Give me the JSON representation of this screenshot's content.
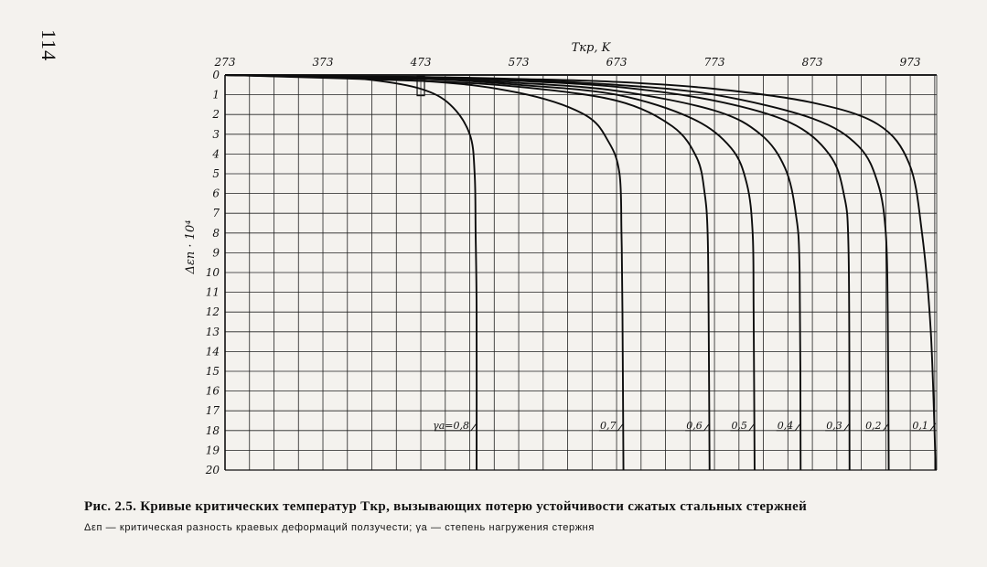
{
  "page_number": "114",
  "caption": {
    "line1": "Рис. 2.5. Кривые критических температур Tкр, вызывающих потерю устойчивости сжатых стальных стержней",
    "line2": "Δεп — критическая разность краевых деформаций ползучести; γa — степень нагружения стержня"
  },
  "chart_data": {
    "type": "line",
    "title": "",
    "xlabel": "Tкр, K",
    "ylabel": "Δεп · 10⁴",
    "xlim": [
      273,
      1000
    ],
    "ylim": [
      0,
      20
    ],
    "y_inverted": true,
    "x_axis_position": "top",
    "grid": true,
    "x_ticks": [
      "273",
      "373",
      "473",
      "573",
      "673",
      "773",
      "873",
      "973"
    ],
    "x_tick_values": [
      273,
      373,
      473,
      573,
      673,
      773,
      873,
      973
    ],
    "y_ticks": [
      "0",
      "1",
      "2",
      "3",
      "4",
      "5",
      "6",
      "7",
      "8",
      "9",
      "10",
      "11",
      "12",
      "13",
      "14",
      "15",
      "16",
      "17",
      "18",
      "19",
      "20"
    ],
    "series": [
      {
        "name": "γa=0,8",
        "points": [
          [
            273,
            0
          ],
          [
            373,
            0.1
          ],
          [
            423,
            0.25
          ],
          [
            473,
            0.7
          ],
          [
            503,
            1.5
          ],
          [
            523,
            3
          ],
          [
            528,
            5
          ],
          [
            529,
            8
          ],
          [
            530,
            12
          ],
          [
            530,
            20
          ]
        ]
      },
      {
        "name": "0,7",
        "points": [
          [
            273,
            0
          ],
          [
            473,
            0.3
          ],
          [
            573,
            0.9
          ],
          [
            640,
            2
          ],
          [
            665,
            3.4
          ],
          [
            676,
            5
          ],
          [
            678,
            8
          ],
          [
            679,
            12
          ],
          [
            680,
            20
          ]
        ]
      },
      {
        "name": "0,6",
        "points": [
          [
            273,
            0
          ],
          [
            473,
            0.3
          ],
          [
            573,
            0.6
          ],
          [
            673,
            1.3
          ],
          [
            730,
            2.6
          ],
          [
            755,
            4.2
          ],
          [
            763,
            6
          ],
          [
            766,
            8
          ],
          [
            767,
            12
          ],
          [
            768,
            20
          ]
        ]
      },
      {
        "name": "0,5",
        "points": [
          [
            273,
            0
          ],
          [
            473,
            0.2
          ],
          [
            573,
            0.5
          ],
          [
            673,
            1
          ],
          [
            750,
            2.2
          ],
          [
            790,
            3.7
          ],
          [
            806,
            5.5
          ],
          [
            812,
            8
          ],
          [
            813,
            12
          ],
          [
            814,
            20
          ]
        ]
      },
      {
        "name": "0,4",
        "points": [
          [
            273,
            0
          ],
          [
            473,
            0.2
          ],
          [
            573,
            0.4
          ],
          [
            673,
            0.8
          ],
          [
            773,
            1.8
          ],
          [
            820,
            3
          ],
          [
            845,
            4.7
          ],
          [
            856,
            7
          ],
          [
            860,
            10
          ],
          [
            861,
            20
          ]
        ]
      },
      {
        "name": "0,3",
        "points": [
          [
            273,
            0
          ],
          [
            473,
            0.15
          ],
          [
            573,
            0.3
          ],
          [
            673,
            0.6
          ],
          [
            773,
            1.3
          ],
          [
            850,
            2.4
          ],
          [
            890,
            4
          ],
          [
            905,
            6
          ],
          [
            910,
            9
          ],
          [
            911,
            20
          ]
        ]
      },
      {
        "name": "0,2",
        "points": [
          [
            273,
            0
          ],
          [
            473,
            0.1
          ],
          [
            573,
            0.25
          ],
          [
            673,
            0.5
          ],
          [
            773,
            1
          ],
          [
            873,
            2.2
          ],
          [
            920,
            3.6
          ],
          [
            940,
            5.5
          ],
          [
            948,
            8
          ],
          [
            950,
            12
          ],
          [
            951,
            20
          ]
        ]
      },
      {
        "name": "0,1",
        "points": [
          [
            273,
            0
          ],
          [
            473,
            0.1
          ],
          [
            573,
            0.2
          ],
          [
            673,
            0.35
          ],
          [
            773,
            0.7
          ],
          [
            873,
            1.4
          ],
          [
            940,
            2.5
          ],
          [
            972,
            4.5
          ],
          [
            985,
            8
          ],
          [
            994,
            13
          ],
          [
            999,
            20
          ]
        ]
      }
    ],
    "annotations": [
      "0",
      "1"
    ]
  }
}
